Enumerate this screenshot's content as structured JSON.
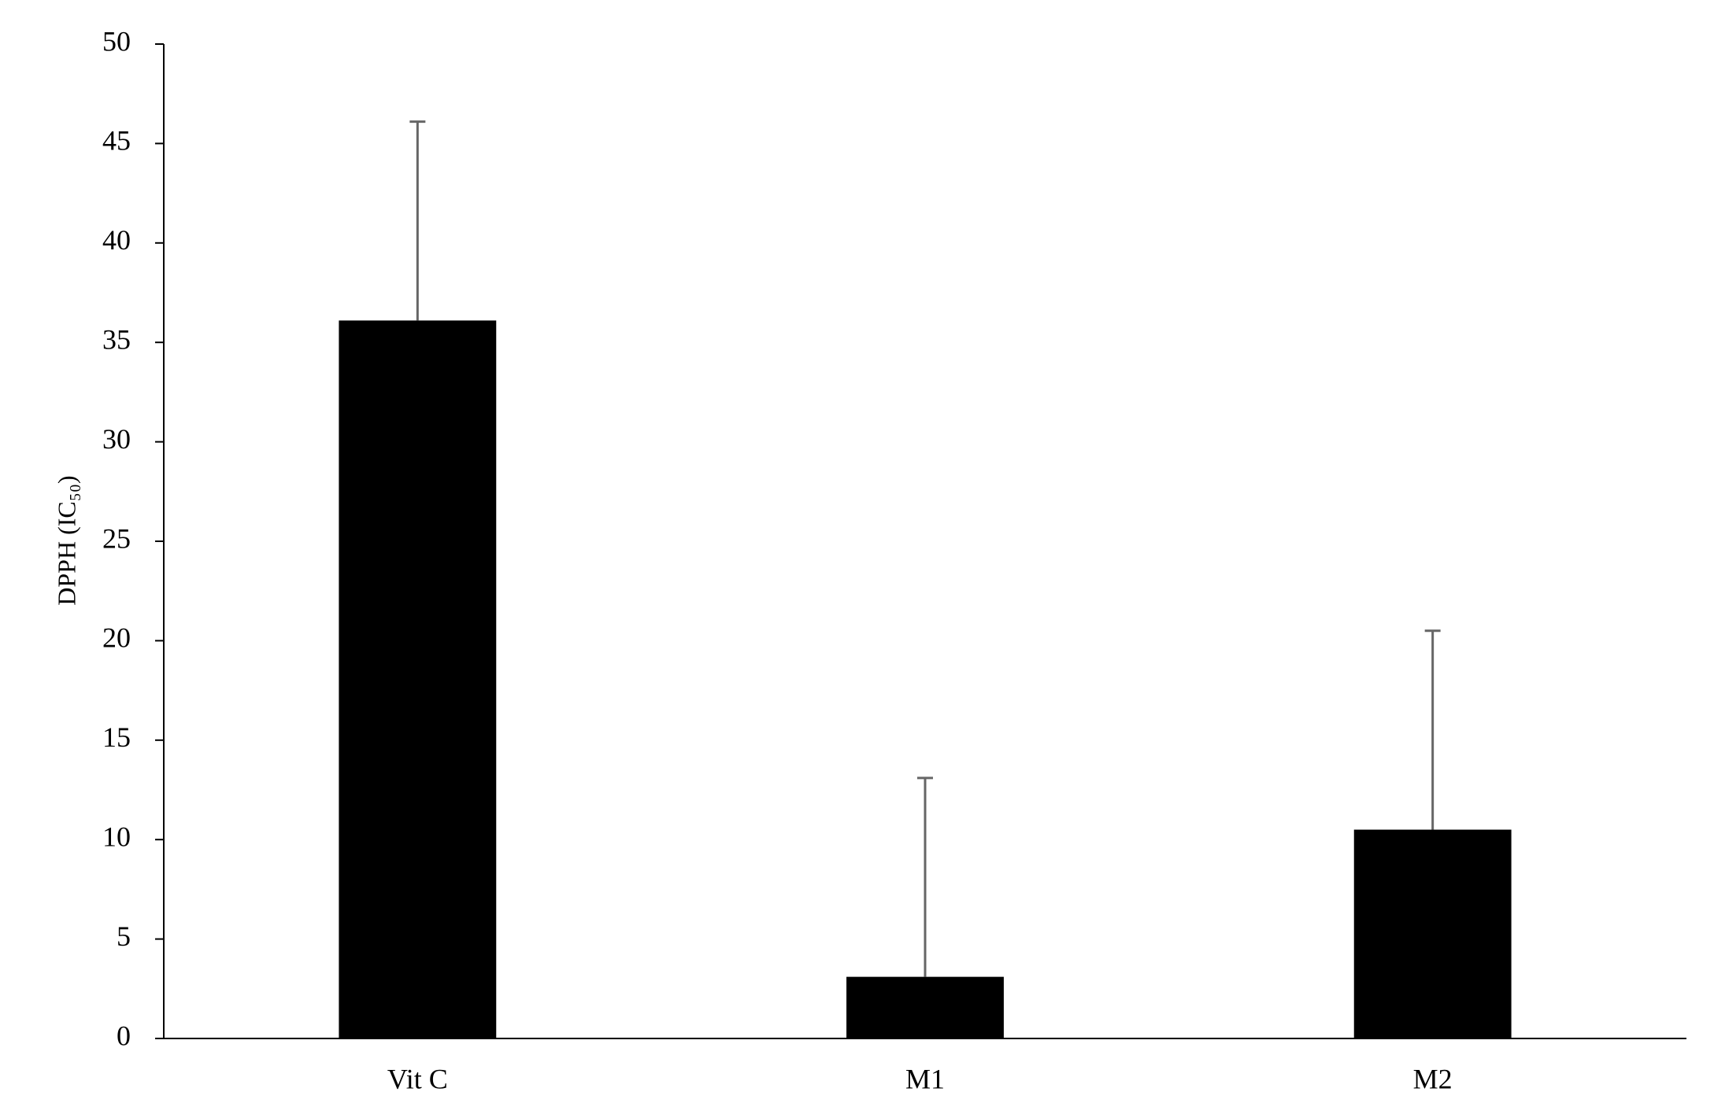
{
  "chart_data": {
    "type": "bar",
    "ylabel": "DPPH (IC₅₀)",
    "categories": [
      "Vit C",
      "M1",
      "M2"
    ],
    "values": [
      36.1,
      3.1,
      10.5
    ],
    "errors": [
      10,
      10,
      10
    ],
    "color": "#000000",
    "error_color": "#666666",
    "ylim": [
      0,
      50
    ],
    "yticks": [
      0,
      5,
      10,
      15,
      20,
      25,
      30,
      35,
      40,
      45,
      50
    ],
    "grid": false
  }
}
